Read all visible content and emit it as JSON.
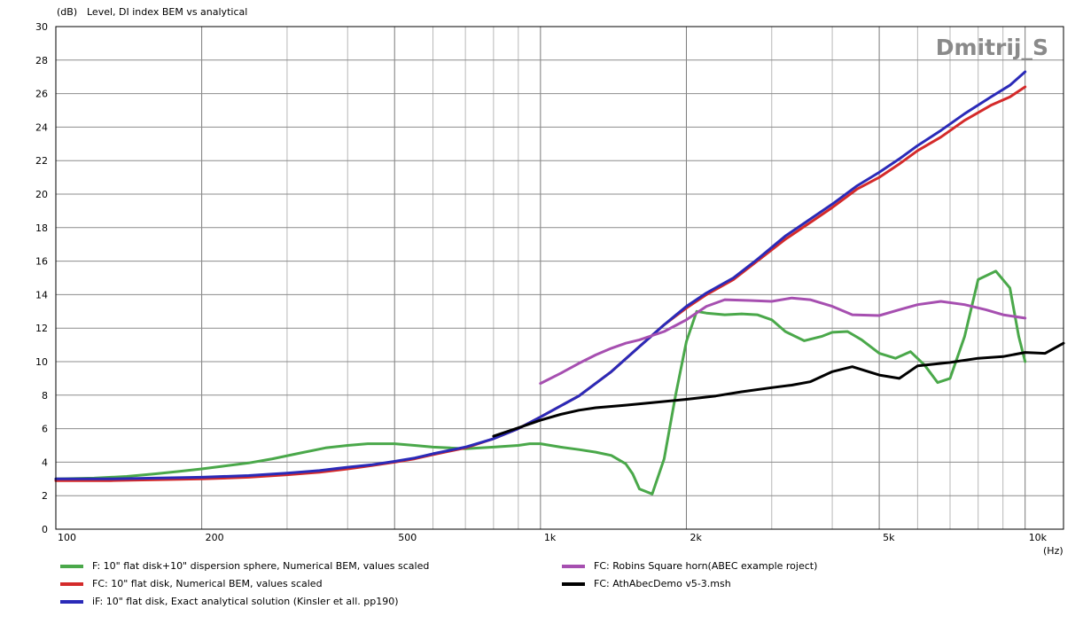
{
  "chart_data": {
    "type": "line",
    "title": "Level, DI index BEM vs analytical",
    "ylabel": "(dB)",
    "xlabel": "(Hz)",
    "watermark": "Dmitrij_S",
    "xscale": "log",
    "xlim": [
      100,
      12000
    ],
    "ylim": [
      0,
      30
    ],
    "grid": true,
    "legend_position": "bottom",
    "x_ticks": [
      {
        "value": 100,
        "label": "100"
      },
      {
        "value": 200,
        "label": "200"
      },
      {
        "value": 500,
        "label": "500"
      },
      {
        "value": 1000,
        "label": "1k"
      },
      {
        "value": 2000,
        "label": "2k"
      },
      {
        "value": 5000,
        "label": "5k"
      },
      {
        "value": 10000,
        "label": "10k"
      }
    ],
    "y_ticks": [
      0,
      2,
      4,
      6,
      8,
      10,
      12,
      14,
      16,
      18,
      20,
      22,
      24,
      26,
      28,
      30
    ],
    "series": [
      {
        "name": "F: 10\" flat disk+10\" dispersion sphere, Numerical BEM, values scaled",
        "color": "#4aa84a",
        "points": [
          [
            100,
            3.0
          ],
          [
            120,
            3.05
          ],
          [
            140,
            3.15
          ],
          [
            160,
            3.3
          ],
          [
            180,
            3.45
          ],
          [
            200,
            3.6
          ],
          [
            220,
            3.75
          ],
          [
            250,
            3.95
          ],
          [
            280,
            4.2
          ],
          [
            320,
            4.55
          ],
          [
            360,
            4.85
          ],
          [
            400,
            5.0
          ],
          [
            440,
            5.1
          ],
          [
            500,
            5.1
          ],
          [
            550,
            5.0
          ],
          [
            600,
            4.9
          ],
          [
            650,
            4.85
          ],
          [
            700,
            4.8
          ],
          [
            800,
            4.9
          ],
          [
            900,
            5.0
          ],
          [
            950,
            5.1
          ],
          [
            1000,
            5.1
          ],
          [
            1100,
            4.9
          ],
          [
            1200,
            4.75
          ],
          [
            1300,
            4.6
          ],
          [
            1400,
            4.4
          ],
          [
            1500,
            3.9
          ],
          [
            1550,
            3.3
          ],
          [
            1600,
            2.4
          ],
          [
            1700,
            2.1
          ],
          [
            1800,
            4.2
          ],
          [
            1900,
            8.0
          ],
          [
            2000,
            11.2
          ],
          [
            2100,
            13.0
          ],
          [
            2200,
            12.9
          ],
          [
            2400,
            12.8
          ],
          [
            2600,
            12.85
          ],
          [
            2800,
            12.8
          ],
          [
            3000,
            12.5
          ],
          [
            3200,
            11.8
          ],
          [
            3500,
            11.25
          ],
          [
            3800,
            11.5
          ],
          [
            4000,
            11.75
          ],
          [
            4300,
            11.8
          ],
          [
            4600,
            11.3
          ],
          [
            5000,
            10.5
          ],
          [
            5400,
            10.2
          ],
          [
            5800,
            10.6
          ],
          [
            6200,
            9.8
          ],
          [
            6600,
            8.75
          ],
          [
            7000,
            9.0
          ],
          [
            7500,
            11.5
          ],
          [
            8000,
            14.9
          ],
          [
            8700,
            15.4
          ],
          [
            9300,
            14.4
          ],
          [
            9700,
            11.5
          ],
          [
            10000,
            10.0
          ]
        ]
      },
      {
        "name": "FC: 10\" flat disk, Numerical BEM, values scaled",
        "color": "#d42a2a",
        "points": [
          [
            100,
            2.9
          ],
          [
            130,
            2.9
          ],
          [
            160,
            2.95
          ],
          [
            200,
            3.0
          ],
          [
            250,
            3.1
          ],
          [
            300,
            3.25
          ],
          [
            350,
            3.4
          ],
          [
            400,
            3.6
          ],
          [
            450,
            3.8
          ],
          [
            500,
            4.0
          ],
          [
            550,
            4.2
          ],
          [
            600,
            4.45
          ],
          [
            700,
            4.85
          ],
          [
            800,
            5.4
          ],
          [
            900,
            6.0
          ],
          [
            1000,
            6.7
          ],
          [
            1200,
            7.95
          ],
          [
            1400,
            9.4
          ],
          [
            1600,
            10.9
          ],
          [
            1800,
            12.2
          ],
          [
            2000,
            13.2
          ],
          [
            2200,
            14.0
          ],
          [
            2500,
            14.9
          ],
          [
            2800,
            16.0
          ],
          [
            3200,
            17.3
          ],
          [
            3600,
            18.3
          ],
          [
            4000,
            19.2
          ],
          [
            4500,
            20.3
          ],
          [
            5000,
            21.0
          ],
          [
            5500,
            21.8
          ],
          [
            6000,
            22.6
          ],
          [
            6700,
            23.4
          ],
          [
            7500,
            24.4
          ],
          [
            8500,
            25.3
          ],
          [
            9300,
            25.8
          ],
          [
            10000,
            26.4
          ]
        ]
      },
      {
        "name": "iF: 10\" flat disk, Exact analytical solution (Kinsler et all. pp190)",
        "color": "#2a2ab8",
        "points": [
          [
            100,
            3.0
          ],
          [
            130,
            3.0
          ],
          [
            160,
            3.05
          ],
          [
            200,
            3.1
          ],
          [
            250,
            3.2
          ],
          [
            300,
            3.35
          ],
          [
            350,
            3.5
          ],
          [
            400,
            3.7
          ],
          [
            450,
            3.85
          ],
          [
            500,
            4.05
          ],
          [
            550,
            4.25
          ],
          [
            600,
            4.5
          ],
          [
            700,
            4.9
          ],
          [
            800,
            5.4
          ],
          [
            900,
            6.0
          ],
          [
            1000,
            6.7
          ],
          [
            1200,
            7.95
          ],
          [
            1400,
            9.4
          ],
          [
            1600,
            10.9
          ],
          [
            1800,
            12.2
          ],
          [
            2000,
            13.3
          ],
          [
            2200,
            14.1
          ],
          [
            2500,
            15.0
          ],
          [
            2800,
            16.1
          ],
          [
            3200,
            17.5
          ],
          [
            3600,
            18.5
          ],
          [
            4000,
            19.4
          ],
          [
            4500,
            20.5
          ],
          [
            5000,
            21.3
          ],
          [
            5500,
            22.1
          ],
          [
            6000,
            22.9
          ],
          [
            6700,
            23.8
          ],
          [
            7500,
            24.8
          ],
          [
            8500,
            25.8
          ],
          [
            9300,
            26.5
          ],
          [
            10000,
            27.3
          ]
        ]
      },
      {
        "name": "FC: Robins Square horn(ABEC example roject)",
        "color": "#a64fb0",
        "points": [
          [
            1000,
            8.7
          ],
          [
            1100,
            9.3
          ],
          [
            1200,
            9.9
          ],
          [
            1300,
            10.4
          ],
          [
            1400,
            10.8
          ],
          [
            1500,
            11.1
          ],
          [
            1600,
            11.3
          ],
          [
            1800,
            11.8
          ],
          [
            2000,
            12.5
          ],
          [
            2200,
            13.3
          ],
          [
            2400,
            13.7
          ],
          [
            2700,
            13.65
          ],
          [
            3000,
            13.6
          ],
          [
            3300,
            13.8
          ],
          [
            3600,
            13.7
          ],
          [
            4000,
            13.3
          ],
          [
            4400,
            12.8
          ],
          [
            5000,
            12.75
          ],
          [
            5500,
            13.1
          ],
          [
            6000,
            13.4
          ],
          [
            6700,
            13.6
          ],
          [
            7500,
            13.4
          ],
          [
            8300,
            13.1
          ],
          [
            9000,
            12.8
          ],
          [
            10000,
            12.6
          ]
        ]
      },
      {
        "name": "FC: AthAbecDemo v5-3.msh",
        "color": "#000000",
        "points": [
          [
            800,
            5.55
          ],
          [
            900,
            6.05
          ],
          [
            1000,
            6.5
          ],
          [
            1100,
            6.85
          ],
          [
            1200,
            7.1
          ],
          [
            1300,
            7.25
          ],
          [
            1500,
            7.4
          ],
          [
            1700,
            7.55
          ],
          [
            2000,
            7.75
          ],
          [
            2300,
            7.95
          ],
          [
            2600,
            8.2
          ],
          [
            3000,
            8.45
          ],
          [
            3300,
            8.6
          ],
          [
            3600,
            8.8
          ],
          [
            4000,
            9.4
          ],
          [
            4400,
            9.7
          ],
          [
            5000,
            9.2
          ],
          [
            5500,
            9.0
          ],
          [
            6000,
            9.75
          ],
          [
            7000,
            9.95
          ],
          [
            8000,
            10.2
          ],
          [
            9000,
            10.3
          ],
          [
            10000,
            10.55
          ],
          [
            11000,
            10.5
          ],
          [
            12000,
            11.1
          ]
        ]
      }
    ]
  }
}
